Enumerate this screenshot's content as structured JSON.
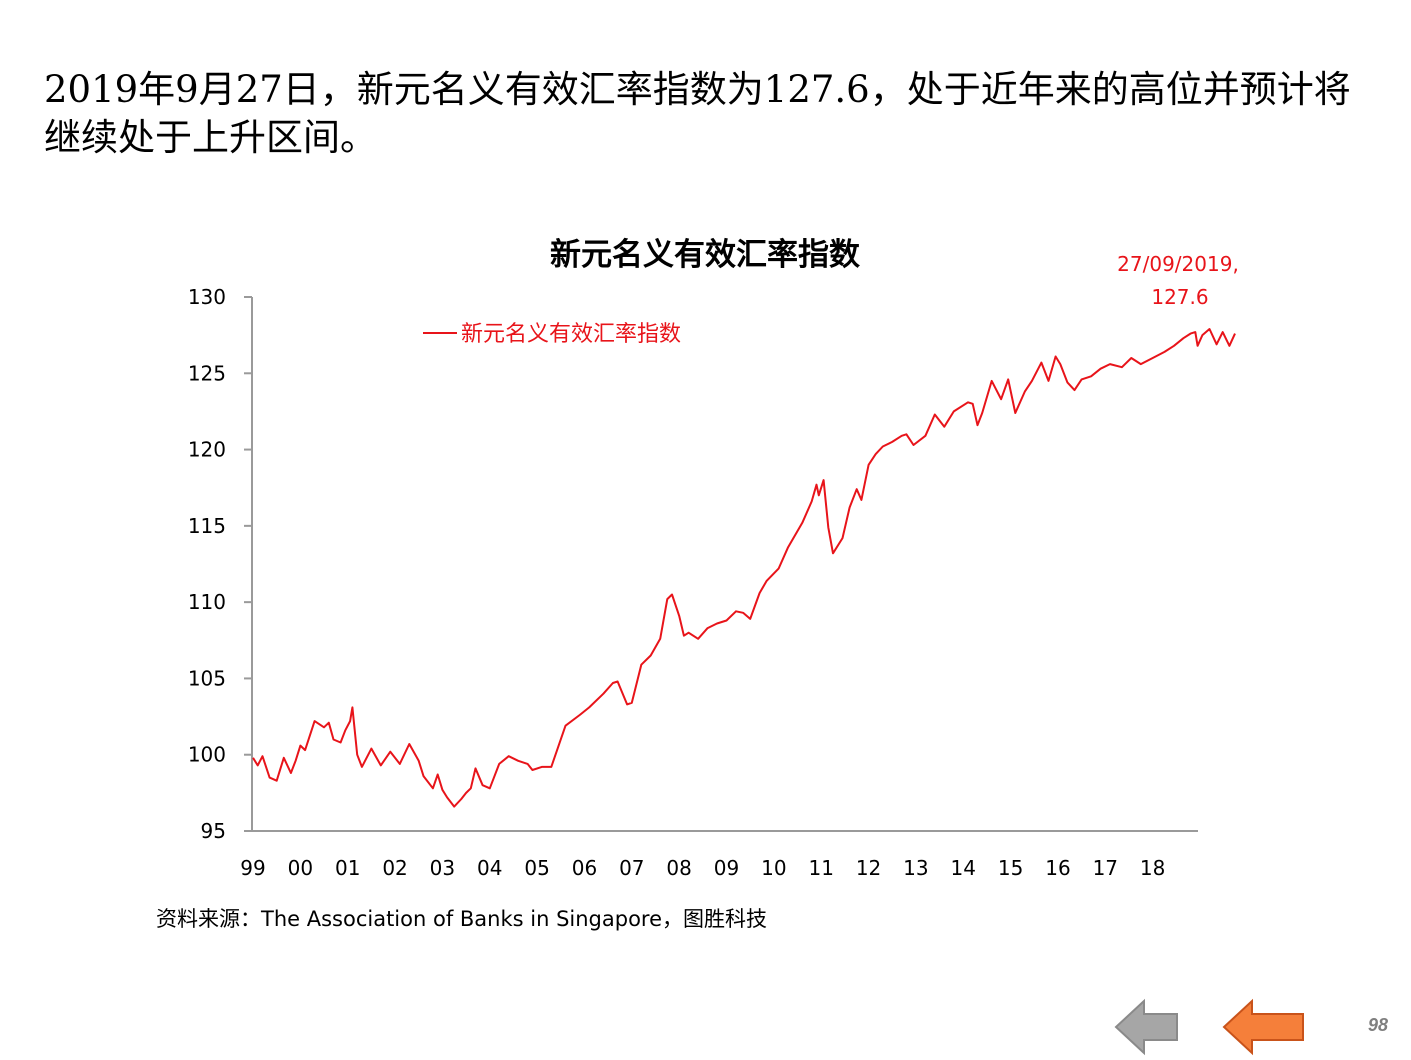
{
  "slide": {
    "headline": "2019年9月27日，新元名义有效汇率指数为127.6，处于近年来的高位并预计将继续处于上升区间。",
    "source": "资料来源：The Association of Banks in Singapore，图胜科技",
    "page_number": "98"
  },
  "nav": {
    "back_icon": "left-arrow-icon-gray",
    "prev_icon": "left-arrow-icon-orange",
    "back_color": "#a6a6a6",
    "prev_color": "#f57f3a"
  },
  "chart_data": {
    "type": "line",
    "title": "新元名义有效汇率指数",
    "legend": "新元名义有效汇率指数",
    "legend_position": "top-left",
    "annotation": {
      "line1": "27/09/2019,",
      "line2": "127.6"
    },
    "series_color": "#e8141a",
    "ylim": [
      95,
      130
    ],
    "yticks": [
      "95",
      "100",
      "105",
      "110",
      "115",
      "120",
      "125",
      "130"
    ],
    "x_ticks": [
      "99",
      "00",
      "01",
      "02",
      "03",
      "04",
      "05",
      "06",
      "07",
      "08",
      "09",
      "10",
      "11",
      "12",
      "13",
      "14",
      "15",
      "16",
      "17",
      "18"
    ],
    "grid": false,
    "series": [
      {
        "name": "新元名义有效汇率指数",
        "x": [
          1999.0,
          1999.1,
          1999.2,
          1999.35,
          1999.5,
          1999.65,
          1999.8,
          1999.9,
          2000.0,
          2000.1,
          2000.3,
          2000.5,
          2000.6,
          2000.7,
          2000.85,
          2000.95,
          2001.05,
          2001.1,
          2001.2,
          2001.3,
          2001.5,
          2001.7,
          2001.9,
          2002.1,
          2002.3,
          2002.5,
          2002.6,
          2002.8,
          2002.9,
          2003.0,
          2003.1,
          2003.25,
          2003.4,
          2003.5,
          2003.6,
          2003.7,
          2003.85,
          2004.0,
          2004.2,
          2004.4,
          2004.6,
          2004.8,
          2004.9,
          2005.1,
          2005.3,
          2005.6,
          2005.9,
          2006.1,
          2006.4,
          2006.6,
          2006.7,
          2006.9,
          2007.0,
          2007.2,
          2007.4,
          2007.6,
          2007.75,
          2007.85,
          2008.0,
          2008.1,
          2008.2,
          2008.4,
          2008.6,
          2008.8,
          2009.0,
          2009.2,
          2009.35,
          2009.5,
          2009.7,
          2009.85,
          2010.1,
          2010.3,
          2010.6,
          2010.8,
          2010.9,
          2010.95,
          2011.05,
          2011.15,
          2011.25,
          2011.45,
          2011.6,
          2011.75,
          2011.85,
          2012.0,
          2012.15,
          2012.3,
          2012.5,
          2012.7,
          2012.8,
          2012.95,
          2013.2,
          2013.4,
          2013.6,
          2013.8,
          2014.1,
          2014.2,
          2014.3,
          2014.4,
          2014.6,
          2014.8,
          2014.95,
          2015.1,
          2015.3,
          2015.45,
          2015.65,
          2015.8,
          2015.95,
          2016.05,
          2016.2,
          2016.35,
          2016.5,
          2016.7,
          2016.9,
          2017.1,
          2017.35,
          2017.55,
          2017.75,
          2018.0,
          2018.25,
          2018.45,
          2018.65,
          2018.8,
          2018.9,
          2018.95,
          2019.05,
          2019.2,
          2019.35,
          2019.48,
          2019.62,
          2019.74
        ],
        "values": [
          99.8,
          99.3,
          99.9,
          98.5,
          98.3,
          99.8,
          98.8,
          99.6,
          100.6,
          100.3,
          102.2,
          101.8,
          102.1,
          101.0,
          100.8,
          101.6,
          102.2,
          103.1,
          100.0,
          99.2,
          100.4,
          99.3,
          100.2,
          99.4,
          100.7,
          99.6,
          98.6,
          97.8,
          98.7,
          97.7,
          97.2,
          96.6,
          97.1,
          97.5,
          97.8,
          99.1,
          98.0,
          97.8,
          99.4,
          99.9,
          99.6,
          99.4,
          99.0,
          99.2,
          99.2,
          101.9,
          102.6,
          103.1,
          104.0,
          104.7,
          104.8,
          103.3,
          103.4,
          105.9,
          106.5,
          107.6,
          110.2,
          110.5,
          109.1,
          107.8,
          108.0,
          107.6,
          108.3,
          108.6,
          108.8,
          109.4,
          109.3,
          108.9,
          110.6,
          111.4,
          112.2,
          113.6,
          115.2,
          116.6,
          117.7,
          117.0,
          118.0,
          114.9,
          113.2,
          114.2,
          116.2,
          117.4,
          116.7,
          119.0,
          119.7,
          120.2,
          120.5,
          120.9,
          121.0,
          120.3,
          120.9,
          122.3,
          121.5,
          122.5,
          123.1,
          123.0,
          121.6,
          122.4,
          124.5,
          123.3,
          124.6,
          122.4,
          123.8,
          124.5,
          125.7,
          124.5,
          126.1,
          125.6,
          124.4,
          123.9,
          124.6,
          124.8,
          125.3,
          125.6,
          125.4,
          126.0,
          125.6,
          126.0,
          126.4,
          126.8,
          127.3,
          127.6,
          127.7,
          126.8,
          127.5,
          127.9,
          126.9,
          127.7,
          126.8,
          127.6
        ]
      }
    ]
  }
}
